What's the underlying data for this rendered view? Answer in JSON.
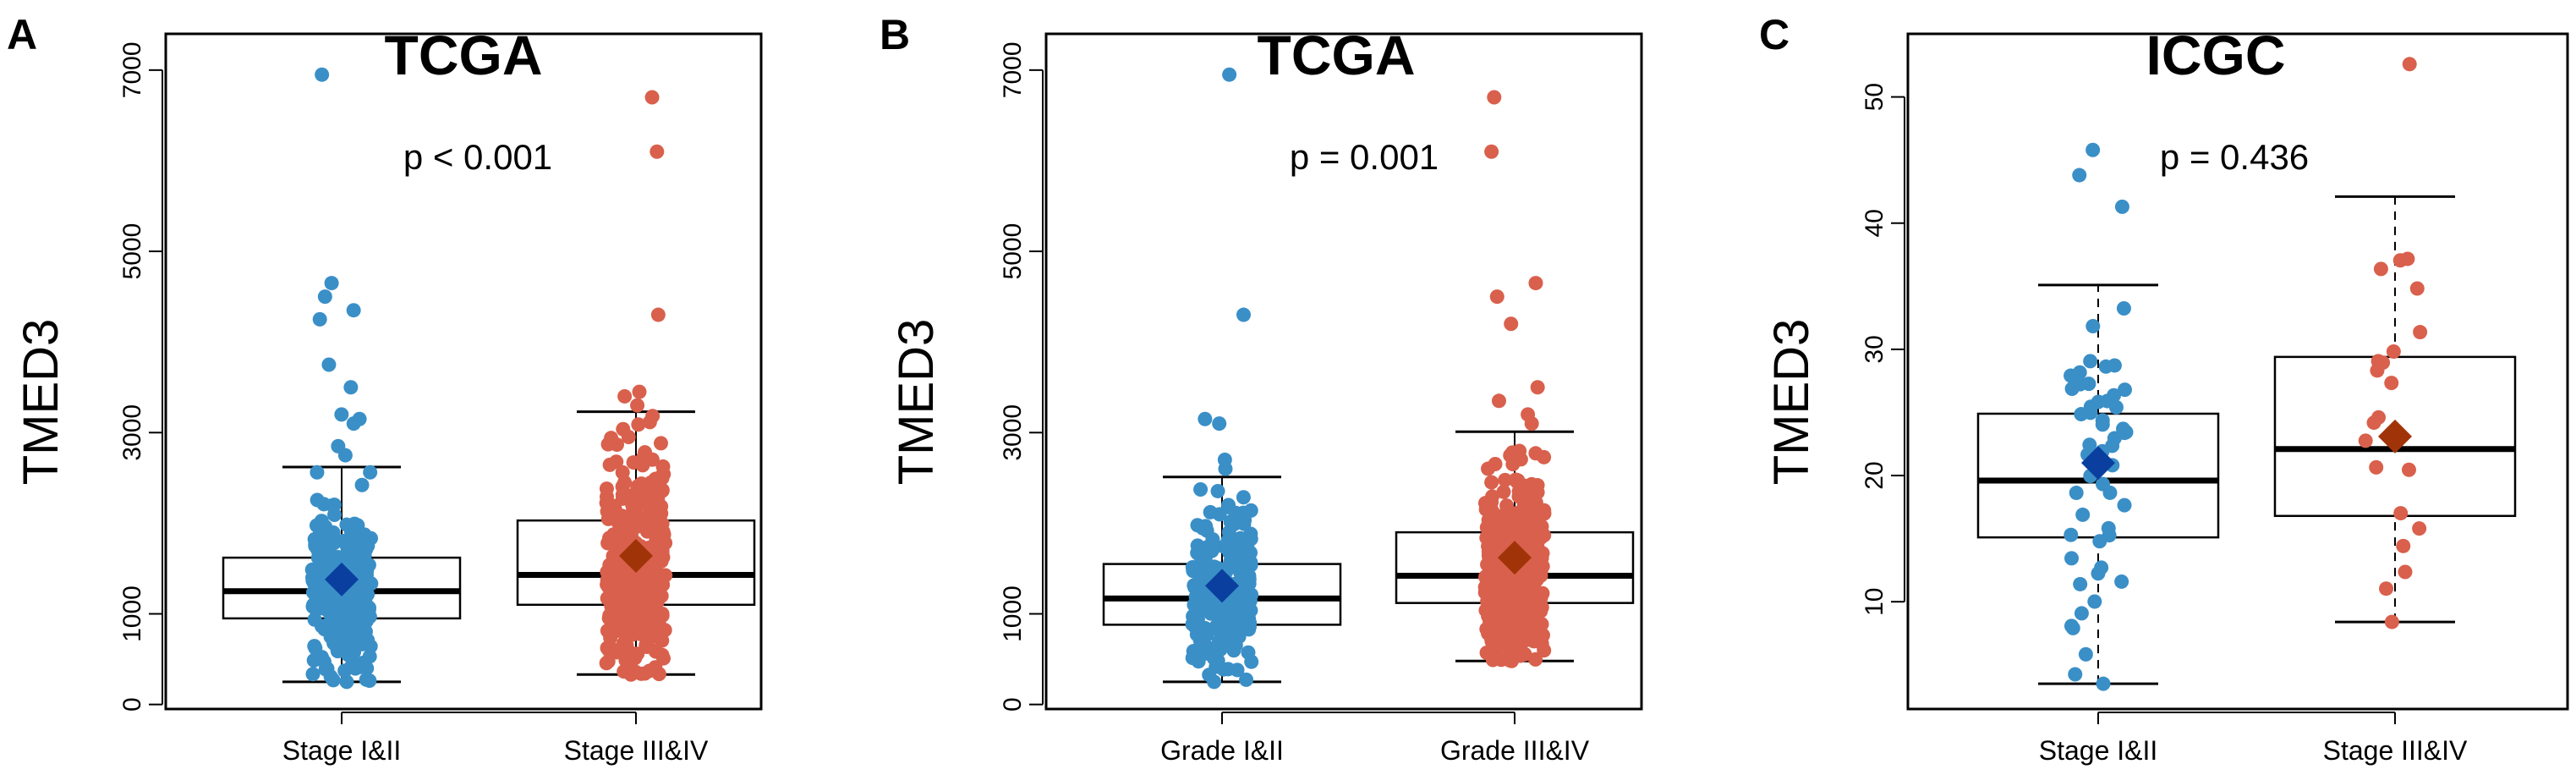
{
  "colors": {
    "blue_points": "#3A8FC7",
    "red_points": "#D9604C",
    "blue_mean": "#0A3FA0",
    "red_mean": "#A03408",
    "box_stroke": "#000000"
  },
  "chart_data": [
    {
      "type": "box",
      "panel_label": "A",
      "title": "TCGA",
      "xlabel": "",
      "ylabel": "TMED3",
      "ylim": [
        -50,
        7400
      ],
      "yticks": [
        0,
        1000,
        3000,
        5000,
        7000
      ],
      "pvalue": "p < 0.001",
      "categories": [
        "Stage I&II",
        "Stage III&IV"
      ],
      "series": [
        {
          "name": "Stage I&II",
          "color": "blue",
          "box": {
            "whisker_low": 250,
            "q1": 950,
            "median": 1250,
            "q3": 1620,
            "whisker_high": 2620
          },
          "mean": 1380,
          "outliers": [
            2750,
            2850,
            3100,
            3150,
            3200,
            3500,
            3750,
            4250,
            4350,
            4500,
            4650,
            6950
          ]
        },
        {
          "name": "Stage III&IV",
          "color": "red",
          "box": {
            "whisker_low": 330,
            "q1": 1100,
            "median": 1430,
            "q3": 2030,
            "whisker_high": 3230
          },
          "mean": 1640,
          "outliers": [
            3300,
            3400,
            3450,
            4300,
            6100,
            6700
          ]
        }
      ]
    },
    {
      "type": "box",
      "panel_label": "B",
      "title": "TCGA",
      "xlabel": "",
      "ylabel": "TMED3",
      "ylim": [
        -50,
        7400
      ],
      "yticks": [
        0,
        1000,
        3000,
        5000,
        7000
      ],
      "pvalue": "p = 0.001",
      "categories": [
        "Grade I&II",
        "Grade III&IV"
      ],
      "series": [
        {
          "name": "Grade I&II",
          "color": "blue",
          "box": {
            "whisker_low": 250,
            "q1": 880,
            "median": 1170,
            "q3": 1550,
            "whisker_high": 2510
          },
          "mean": 1310,
          "outliers": [
            2600,
            2700,
            3100,
            3150,
            4300,
            6950
          ]
        },
        {
          "name": "Grade III&IV",
          "color": "red",
          "box": {
            "whisker_low": 480,
            "q1": 1120,
            "median": 1420,
            "q3": 1900,
            "whisker_high": 3010
          },
          "mean": 1620,
          "outliers": [
            3100,
            3200,
            3350,
            3500,
            4200,
            4500,
            4650,
            6100,
            6700
          ]
        }
      ]
    },
    {
      "type": "box",
      "panel_label": "C",
      "title": "ICGC",
      "xlabel": "",
      "ylabel": "TMED3",
      "ylim": [
        1.5,
        55
      ],
      "yticks": [
        10,
        20,
        30,
        40,
        50
      ],
      "pvalue": "p = 0.436",
      "categories": [
        "Stage I&II",
        "Stage III&IV"
      ],
      "series": [
        {
          "name": "Stage I&II",
          "color": "blue",
          "box": {
            "whisker_low": 3.5,
            "q1": 15.1,
            "median": 19.6,
            "q3": 24.9,
            "whisker_high": 35.1
          },
          "mean": 21.0,
          "outliers": [
            41.3,
            43.8,
            45.8
          ]
        },
        {
          "name": "Stage III&IV",
          "color": "red",
          "box": {
            "whisker_low": 8.4,
            "q1": 16.8,
            "median": 22.1,
            "q3": 29.4,
            "whisker_high": 42.1
          },
          "mean": 23.1,
          "outliers": [
            52.6
          ]
        }
      ]
    }
  ]
}
